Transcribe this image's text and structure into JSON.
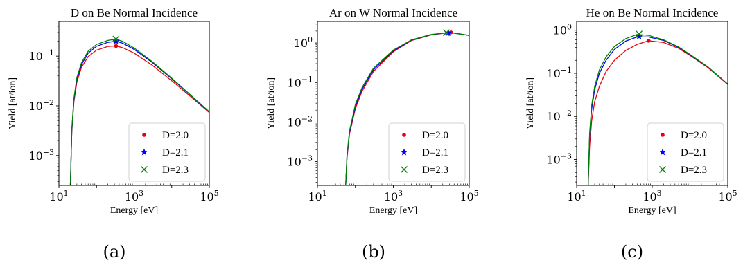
{
  "colors": {
    "D=2.0": "#e8000b",
    "D=2.1": "#0000ff",
    "D=2.3": "#008000"
  },
  "chart_data": [
    {
      "type": "line",
      "panel": "(a)",
      "title": "D on Be Normal Incidence",
      "xlabel": "Energy [eV]",
      "ylabel": "Yield [at/ion]",
      "xscale": "log",
      "yscale": "log",
      "xlim": [
        10,
        100000
      ],
      "ylim": [
        0.00025,
        0.5
      ],
      "xticks": [
        {
          "v": 10,
          "b": "10",
          "e": "1"
        },
        {
          "v": 1000,
          "b": "10",
          "e": "3"
        },
        {
          "v": 100000,
          "b": "10",
          "e": "5"
        }
      ],
      "yticks": [
        {
          "v": 0.001,
          "b": "10",
          "e": "−3"
        },
        {
          "v": 0.01,
          "b": "10",
          "e": "−2"
        },
        {
          "v": 0.1,
          "b": "10",
          "e": "−1"
        }
      ],
      "legend": "lower-right",
      "series": [
        {
          "name": "D=2.0",
          "marker": "dot",
          "peak": [
            330,
            0.16
          ],
          "x": [
            20,
            22,
            25,
            30,
            40,
            60,
            100,
            200,
            330,
            500,
            1000,
            3000,
            10000,
            30000,
            100000
          ],
          "y": [
            0.0002,
            0.003,
            0.012,
            0.03,
            0.06,
            0.098,
            0.132,
            0.157,
            0.16,
            0.148,
            0.115,
            0.066,
            0.032,
            0.016,
            0.0073
          ]
        },
        {
          "name": "D=2.1",
          "marker": "star",
          "peak": [
            330,
            0.2
          ],
          "x": [
            20,
            22,
            25,
            30,
            40,
            60,
            100,
            200,
            330,
            500,
            1000,
            3000,
            10000,
            30000,
            100000
          ],
          "y": [
            0.0002,
            0.0032,
            0.013,
            0.034,
            0.068,
            0.115,
            0.158,
            0.19,
            0.2,
            0.182,
            0.137,
            0.075,
            0.035,
            0.017,
            0.0075
          ]
        },
        {
          "name": "D=2.3",
          "marker": "x",
          "peak": [
            330,
            0.22
          ],
          "x": [
            20,
            22,
            25,
            30,
            40,
            60,
            100,
            200,
            330,
            500,
            1000,
            3000,
            10000,
            30000,
            100000
          ],
          "y": [
            0.0002,
            0.0034,
            0.014,
            0.037,
            0.074,
            0.126,
            0.172,
            0.208,
            0.22,
            0.198,
            0.146,
            0.078,
            0.036,
            0.0172,
            0.0076
          ]
        }
      ]
    },
    {
      "type": "line",
      "panel": "(b)",
      "title": "Ar on W Normal Incidence",
      "xlabel": "Energy [eV]",
      "ylabel": "Yield [at/ion]",
      "xscale": "log",
      "yscale": "log",
      "xlim": [
        10,
        100000
      ],
      "ylim": [
        0.00025,
        3.5
      ],
      "xticks": [
        {
          "v": 10,
          "b": "10",
          "e": "1"
        },
        {
          "v": 1000,
          "b": "10",
          "e": "3"
        },
        {
          "v": 100000,
          "b": "10",
          "e": "5"
        }
      ],
      "yticks": [
        {
          "v": 0.001,
          "b": "10",
          "e": "−3"
        },
        {
          "v": 0.01,
          "b": "10",
          "e": "−2"
        },
        {
          "v": 0.1,
          "b": "10",
          "e": "−1"
        },
        {
          "v": 1,
          "b": "10",
          "e": "0"
        }
      ],
      "legend": "lower-right",
      "series": [
        {
          "name": "D=2.0",
          "marker": "dot",
          "peak": [
            33000,
            1.85
          ],
          "x": [
            55,
            60,
            70,
            100,
            150,
            300,
            1000,
            3000,
            10000,
            30000,
            100000
          ],
          "y": [
            0.0002,
            0.0012,
            0.005,
            0.022,
            0.06,
            0.19,
            0.6,
            1.15,
            1.6,
            1.85,
            1.55
          ]
        },
        {
          "name": "D=2.1",
          "marker": "star",
          "peak": [
            28000,
            1.8
          ],
          "x": [
            55,
            60,
            70,
            100,
            150,
            300,
            1000,
            3000,
            10000,
            30000,
            100000
          ],
          "y": [
            0.0002,
            0.0013,
            0.0055,
            0.025,
            0.068,
            0.21,
            0.63,
            1.18,
            1.62,
            1.85,
            1.55
          ]
        },
        {
          "name": "D=2.3",
          "marker": "x",
          "peak": [
            25000,
            1.82
          ],
          "x": [
            55,
            60,
            70,
            100,
            150,
            300,
            1000,
            3000,
            10000,
            30000,
            100000
          ],
          "y": [
            0.0002,
            0.0014,
            0.006,
            0.028,
            0.075,
            0.23,
            0.66,
            1.2,
            1.64,
            1.85,
            1.55
          ]
        }
      ]
    },
    {
      "type": "line",
      "panel": "(c)",
      "title": "He on Be Normal Incidence",
      "xlabel": "Energy [eV]",
      "ylabel": "Yield [at/ion]",
      "xscale": "log",
      "yscale": "log",
      "xlim": [
        10,
        100000
      ],
      "ylim": [
        0.00025,
        1.6
      ],
      "xticks": [
        {
          "v": 10,
          "b": "10",
          "e": "1"
        },
        {
          "v": 1000,
          "b": "10",
          "e": "3"
        },
        {
          "v": 100000,
          "b": "10",
          "e": "5"
        }
      ],
      "yticks": [
        {
          "v": 0.001,
          "b": "10",
          "e": "−3"
        },
        {
          "v": 0.01,
          "b": "10",
          "e": "−2"
        },
        {
          "v": 0.1,
          "b": "10",
          "e": "−1"
        },
        {
          "v": 1,
          "b": "10",
          "e": "0"
        }
      ],
      "legend": "lower-right",
      "series": [
        {
          "name": "D=2.0",
          "marker": "dot",
          "peak": [
            800,
            0.57
          ],
          "x": [
            20,
            22,
            25,
            30,
            40,
            60,
            100,
            200,
            400,
            800,
            2000,
            5000,
            10000,
            30000,
            100000
          ],
          "y": [
            0.0002,
            0.002,
            0.008,
            0.022,
            0.05,
            0.11,
            0.2,
            0.34,
            0.47,
            0.57,
            0.52,
            0.38,
            0.26,
            0.135,
            0.055
          ]
        },
        {
          "name": "D=2.1",
          "marker": "star",
          "peak": [
            450,
            0.72
          ],
          "x": [
            20,
            22,
            25,
            30,
            40,
            60,
            100,
            200,
            400,
            800,
            2000,
            5000,
            10000,
            30000,
            100000
          ],
          "y": [
            0.0002,
            0.0035,
            0.015,
            0.042,
            0.1,
            0.2,
            0.36,
            0.56,
            0.7,
            0.7,
            0.58,
            0.4,
            0.27,
            0.14,
            0.056
          ]
        },
        {
          "name": "D=2.3",
          "marker": "x",
          "peak": [
            450,
            0.82
          ],
          "x": [
            20,
            22,
            25,
            30,
            40,
            60,
            100,
            200,
            400,
            800,
            2000,
            5000,
            10000,
            30000,
            100000
          ],
          "y": [
            0.0002,
            0.004,
            0.018,
            0.05,
            0.12,
            0.24,
            0.42,
            0.64,
            0.8,
            0.76,
            0.6,
            0.41,
            0.275,
            0.14,
            0.056
          ]
        }
      ]
    }
  ]
}
